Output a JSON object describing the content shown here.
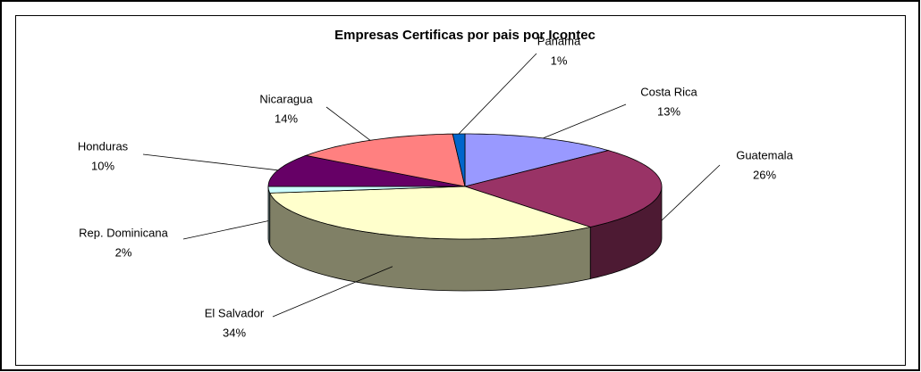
{
  "chart_data": {
    "type": "pie3d",
    "title": "Empresas Certificas por pais por Icontec",
    "categories": [
      "Costa Rica",
      "Guatemala",
      "El Salvador",
      "Rep. Dominicana",
      "Honduras",
      "Nicaragua",
      "Panama"
    ],
    "values": [
      13,
      26,
      34,
      2,
      10,
      14,
      1
    ],
    "value_labels": [
      "13%",
      "26%",
      "34%",
      "2%",
      "10%",
      "14%",
      "1%"
    ],
    "colors": [
      "#9999ff",
      "#993366",
      "#ffffcc",
      "#ccffff",
      "#660066",
      "#ff8080",
      "#0066cc"
    ]
  }
}
